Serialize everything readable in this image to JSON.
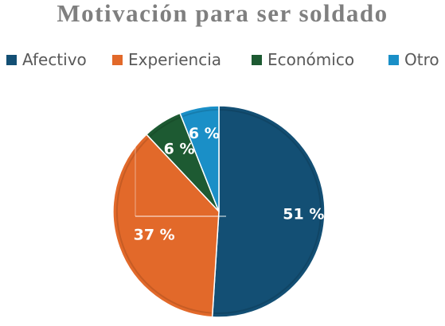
{
  "chart_data": {
    "type": "pie",
    "title": "Motivación para ser soldado",
    "legend_position": "top",
    "categories": [
      "Afectivo",
      "Experiencia",
      "Económico",
      "Otro"
    ],
    "values": [
      51,
      37,
      6,
      6
    ],
    "data_labels": [
      "51 %",
      "37 %",
      "6 %",
      "6 %"
    ],
    "colors": [
      "#134f74",
      "#e2692a",
      "#1d5a32",
      "#1a8fc7"
    ]
  }
}
